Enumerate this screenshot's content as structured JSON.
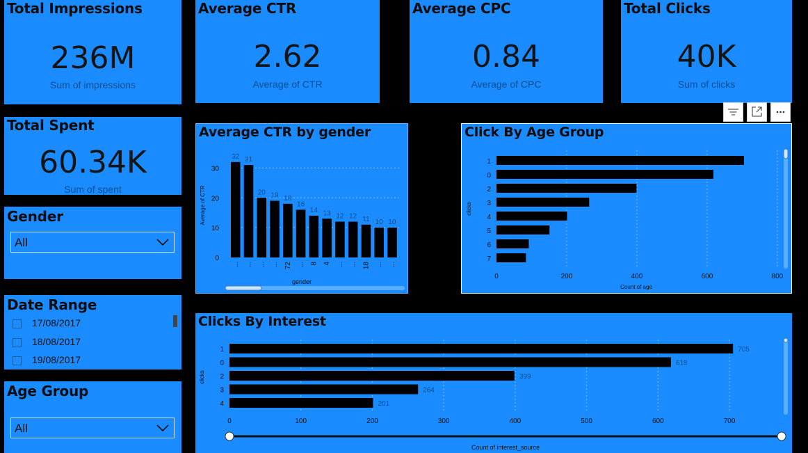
{
  "kpis": {
    "impressions": {
      "title": "Total Impressions",
      "value": "236M",
      "sub": "Sum of impressions"
    },
    "ctr": {
      "title": "Average CTR",
      "value": "2.62",
      "sub": "Average of CTR"
    },
    "cpc": {
      "title": "Average CPC",
      "value": "0.84",
      "sub": "Average of CPC"
    },
    "clicks": {
      "title": "Total Clicks",
      "value": "40K",
      "sub": "Sum of clicks"
    },
    "spent": {
      "title": "Total Spent",
      "value": "60.34K",
      "sub": "Sum of spent"
    }
  },
  "filters": {
    "gender": {
      "title": "Gender",
      "value": "All"
    },
    "date_range": {
      "title": "Date Range",
      "items": [
        "17/08/2017",
        "18/08/2017",
        "19/08/2017"
      ]
    },
    "age_group": {
      "title": "Age Group",
      "value": "All"
    }
  },
  "visual_header": {
    "icons": [
      "filter-icon",
      "focus-mode-icon",
      "more-options-icon"
    ]
  },
  "colors": {
    "card": "#1a8cff",
    "bar": "#000000",
    "background": "#000000"
  },
  "chart_data": [
    {
      "id": "ctr_by_gender",
      "type": "bar",
      "title": "Average CTR by gender",
      "xlabel": "gender",
      "ylabel": "Average of CTR",
      "categories": [
        "...",
        "...",
        "...",
        "...",
        "72",
        "...",
        "8",
        "4",
        "...",
        "...",
        "18",
        "...",
        "..."
      ],
      "values": [
        32,
        31,
        20,
        19,
        18,
        16,
        14,
        13,
        12,
        12,
        11,
        10,
        10
      ],
      "data_labels": [
        "32",
        "31",
        "20",
        "19",
        "18",
        "16",
        "14",
        "13",
        "12",
        "12",
        "11",
        "10",
        "10"
      ],
      "yticks": [
        0,
        10,
        20,
        30
      ],
      "ylim": [
        0,
        35
      ],
      "grid": true
    },
    {
      "id": "click_by_age_group",
      "type": "bar",
      "orientation": "horizontal",
      "title": "Click By Age Group",
      "xlabel": "Count of age",
      "ylabel": "clicks",
      "categories": [
        "1",
        "0",
        "2",
        "3",
        "4",
        "5",
        "6",
        "7"
      ],
      "values": [
        705,
        618,
        399,
        264,
        201,
        151,
        92,
        84
      ],
      "xticks": [
        0,
        200,
        400,
        600,
        800
      ],
      "xlim": [
        0,
        820
      ],
      "grid": true
    },
    {
      "id": "clicks_by_interest",
      "type": "bar",
      "orientation": "horizontal",
      "title": "Clicks By Interest",
      "xlabel": "Count of interest_source",
      "ylabel": "clicks",
      "categories": [
        "1",
        "0",
        "2",
        "3",
        "4"
      ],
      "values": [
        705,
        618,
        399,
        264,
        201
      ],
      "data_labels": [
        "705",
        "618",
        "399",
        "264",
        "201"
      ],
      "xticks": [
        0,
        100,
        200,
        300,
        400,
        500,
        600,
        700
      ],
      "xlim": [
        0,
        735
      ],
      "grid": true
    }
  ]
}
